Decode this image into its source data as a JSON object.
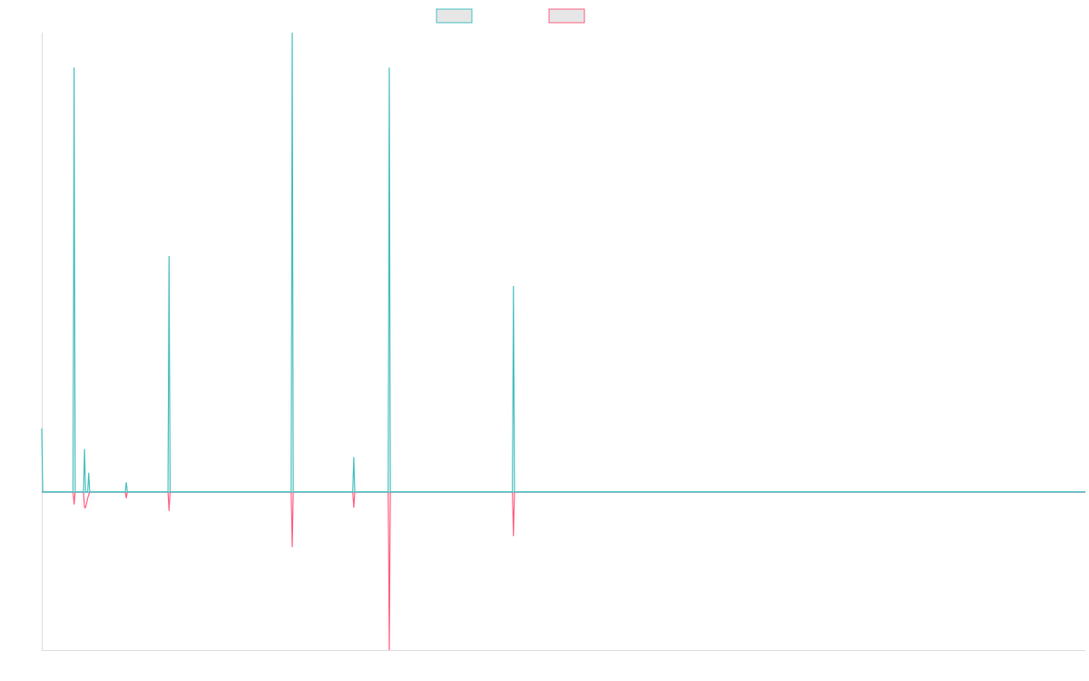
{
  "chart_data": {
    "type": "line",
    "title": "",
    "xlabel": "",
    "ylabel": "",
    "grid": false,
    "legend_position": "top-center",
    "ylim": [
      -100,
      290
    ],
    "series": [
      {
        "color": "#4bc0c0",
        "fill": "#e6e6e6",
        "points": [
          [
            0,
            40
          ],
          [
            1,
            0
          ],
          [
            30,
            0
          ],
          [
            31,
            268
          ],
          [
            32,
            0
          ],
          [
            40,
            0
          ],
          [
            41,
            27
          ],
          [
            42,
            0
          ],
          [
            44,
            0
          ],
          [
            45,
            12
          ],
          [
            46,
            0
          ],
          [
            80,
            0
          ],
          [
            81,
            6
          ],
          [
            82,
            0
          ],
          [
            121,
            0
          ],
          [
            122,
            149
          ],
          [
            123,
            0
          ],
          [
            239,
            0
          ],
          [
            240,
            290
          ],
          [
            241,
            0
          ],
          [
            298,
            0
          ],
          [
            299,
            22
          ],
          [
            300,
            0
          ],
          [
            332,
            0
          ],
          [
            333,
            268
          ],
          [
            334,
            0
          ],
          [
            451,
            0
          ],
          [
            452,
            130
          ],
          [
            453,
            0
          ],
          [
            1000,
            0
          ]
        ]
      },
      {
        "color": "#ff6384",
        "fill": "#e6e6e6",
        "points": [
          [
            0,
            0
          ],
          [
            30,
            0
          ],
          [
            31,
            -8
          ],
          [
            32,
            0
          ],
          [
            40,
            0
          ],
          [
            41,
            -10
          ],
          [
            42,
            -10
          ],
          [
            44,
            -4
          ],
          [
            45,
            -2
          ],
          [
            46,
            0
          ],
          [
            80,
            0
          ],
          [
            81,
            -4
          ],
          [
            82,
            0
          ],
          [
            121,
            0
          ],
          [
            122,
            -12
          ],
          [
            123,
            0
          ],
          [
            239,
            0
          ],
          [
            240,
            -35
          ],
          [
            241,
            0
          ],
          [
            298,
            0
          ],
          [
            299,
            -10
          ],
          [
            300,
            0
          ],
          [
            332,
            0
          ],
          [
            333,
            -100
          ],
          [
            334,
            0
          ],
          [
            451,
            0
          ],
          [
            452,
            -28
          ],
          [
            453,
            0
          ],
          [
            1000,
            0
          ]
        ]
      }
    ]
  },
  "legend": {
    "items": [
      {
        "color": "#4bc0c0",
        "fill": "#e6e6e6"
      },
      {
        "color": "#ff6384",
        "fill": "#e6e6e6"
      }
    ]
  }
}
